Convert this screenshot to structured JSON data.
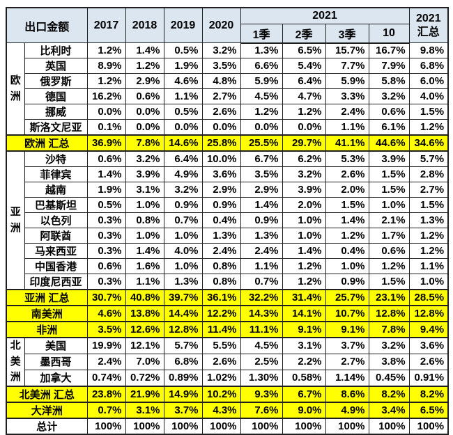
{
  "chart_data": {
    "type": "table",
    "title": "出口金额",
    "header": {
      "corner": "出口金额",
      "year_cols": [
        "2017",
        "2018",
        "2019",
        "2020"
      ],
      "span_2021": "2021",
      "sub_cols": [
        "1季",
        "2季",
        "3季",
        "10"
      ],
      "total_col": {
        "line1": "2021",
        "line2": "汇总"
      }
    },
    "colors": {
      "header_bg": "#dce6f1",
      "highlight": "#ffff00",
      "border": "#1f1f1f",
      "text": "#000000"
    },
    "legend_position": "none",
    "grid": true,
    "rows": [
      {
        "kind": "country",
        "label": "比利时",
        "group": {
          "label": "欧洲",
          "span": 6
        },
        "values": [
          "1.2%",
          "1.4%",
          "0.5%",
          "3.2%",
          "1.3%",
          "6.5%",
          "15.7%",
          "16.7%",
          "9.8%"
        ]
      },
      {
        "kind": "country",
        "label": "英国",
        "values": [
          "8.9%",
          "1.2%",
          "1.9%",
          "3.5%",
          "6.6%",
          "5.4%",
          "7.7%",
          "7.9%",
          "6.8%"
        ]
      },
      {
        "kind": "country",
        "label": "俄罗斯",
        "values": [
          "1.2%",
          "2.9%",
          "4.6%",
          "4.8%",
          "5.9%",
          "6.4%",
          "5.9%",
          "5.8%",
          "6.0%"
        ]
      },
      {
        "kind": "country",
        "label": "德国",
        "values": [
          "16.2%",
          "0.6%",
          "1.1%",
          "2.7%",
          "4.5%",
          "4.7%",
          "3.3%",
          "3.2%",
          "4.0%"
        ]
      },
      {
        "kind": "country",
        "label": "挪威",
        "values": [
          "0.0%",
          "0.0%",
          "0.5%",
          "2.6%",
          "1.2%",
          "1.2%",
          "2.4%",
          "0.6%",
          "1.5%"
        ]
      },
      {
        "kind": "country",
        "label": "斯洛文尼亚",
        "values": [
          "0.1%",
          "0.0%",
          "0.0%",
          "0.0%",
          "0.0%",
          "0.0%",
          "1.1%",
          "6.1%",
          "1.2%"
        ]
      },
      {
        "kind": "summary",
        "label": "欧洲 汇总",
        "values": [
          "36.9%",
          "7.8%",
          "14.6%",
          "25.8%",
          "25.5%",
          "29.7%",
          "41.1%",
          "44.6%",
          "34.6%"
        ]
      },
      {
        "kind": "country",
        "label": "沙特",
        "group": {
          "label": "亚洲",
          "span": 9
        },
        "values": [
          "0.6%",
          "3.2%",
          "6.4%",
          "10.0%",
          "6.7%",
          "6.2%",
          "5.3%",
          "3.9%",
          "5.7%"
        ]
      },
      {
        "kind": "country",
        "label": "菲律宾",
        "values": [
          "1.4%",
          "3.9%",
          "4.9%",
          "3.6%",
          "3.5%",
          "3.2%",
          "2.6%",
          "1.5%",
          "2.8%"
        ]
      },
      {
        "kind": "country",
        "label": "越南",
        "values": [
          "1.9%",
          "3.1%",
          "3.2%",
          "2.9%",
          "2.9%",
          "3.9%",
          "2.0%",
          "1.5%",
          "2.7%"
        ]
      },
      {
        "kind": "country",
        "label": "巴基斯坦",
        "values": [
          "0.5%",
          "1.0%",
          "0.9%",
          "0.9%",
          "1.4%",
          "2.0%",
          "1.5%",
          "1.0%",
          "1.5%"
        ]
      },
      {
        "kind": "country",
        "label": "以色列",
        "values": [
          "0.3%",
          "0.8%",
          "0.7%",
          "0.4%",
          "0.9%",
          "1.0%",
          "1.4%",
          "2.1%",
          "1.3%"
        ]
      },
      {
        "kind": "country",
        "label": "阿联酋",
        "values": [
          "0.3%",
          "1.0%",
          "1.0%",
          "1.3%",
          "1.3%",
          "1.0%",
          "1.2%",
          "1.7%",
          "1.2%"
        ]
      },
      {
        "kind": "country",
        "label": "马来西亚",
        "values": [
          "0.3%",
          "1.4%",
          "4.0%",
          "2.4%",
          "2.4%",
          "1.4%",
          "0.4%",
          "0.6%",
          "1.2%"
        ]
      },
      {
        "kind": "country",
        "label": "中国香港",
        "values": [
          "0.6%",
          "1.6%",
          "1.0%",
          "0.8%",
          "1.1%",
          "1.2%",
          "1.0%",
          "1.2%",
          "1.1%"
        ]
      },
      {
        "kind": "country",
        "label": "印度尼西亚",
        "values": [
          "0.3%",
          "1.1%",
          "1.3%",
          "0.8%",
          "0.7%",
          "1.2%",
          "0.9%",
          "1.5%",
          "1.0%"
        ]
      },
      {
        "kind": "summary",
        "label": "亚洲 汇总",
        "values": [
          "30.7%",
          "40.8%",
          "39.7%",
          "36.1%",
          "32.2%",
          "31.4%",
          "25.7%",
          "23.1%",
          "28.5%"
        ]
      },
      {
        "kind": "summary",
        "label": "南美洲",
        "values": [
          "4.6%",
          "13.8%",
          "14.4%",
          "12.2%",
          "14.3%",
          "14.1%",
          "10.7%",
          "12.8%",
          "12.8%"
        ]
      },
      {
        "kind": "summary",
        "label": "非洲",
        "values": [
          "3.5%",
          "12.6%",
          "12.8%",
          "11.4%",
          "11.1%",
          "9.1%",
          "9.1%",
          "7.8%",
          "9.4%"
        ]
      },
      {
        "kind": "country",
        "label": "美国",
        "group": {
          "label": "北美洲",
          "span": 3
        },
        "values": [
          "19.9%",
          "12.1%",
          "5.7%",
          "5.5%",
          "4.5%",
          "3.1%",
          "3.7%",
          "3.2%",
          "3.6%"
        ]
      },
      {
        "kind": "country",
        "label": "墨西哥",
        "values": [
          "2.4%",
          "7.0%",
          "6.8%",
          "2.6%",
          "2.5%",
          "2.2%",
          "2.7%",
          "3.8%",
          "2.6%"
        ]
      },
      {
        "kind": "country",
        "label": "加拿大",
        "values": [
          "0.74%",
          "0.72%",
          "0.89%",
          "1.02%",
          "1.30%",
          "0.58%",
          "1.14%",
          "0.45%",
          "0.91%"
        ]
      },
      {
        "kind": "summary",
        "label": "北美洲 汇总",
        "values": [
          "23.8%",
          "21.9%",
          "14.9%",
          "10.2%",
          "9.3%",
          "6.7%",
          "8.6%",
          "8.2%",
          "8.2%"
        ]
      },
      {
        "kind": "summary",
        "label": "大洋洲",
        "values": [
          "0.7%",
          "3.1%",
          "3.7%",
          "4.3%",
          "7.6%",
          "9.0%",
          "4.9%",
          "3.4%",
          "6.5%"
        ]
      },
      {
        "kind": "total",
        "label": "总计",
        "values": [
          "100%",
          "100%",
          "100%",
          "100%",
          "100%",
          "100%",
          "100%",
          "100%",
          "100%"
        ]
      }
    ]
  }
}
